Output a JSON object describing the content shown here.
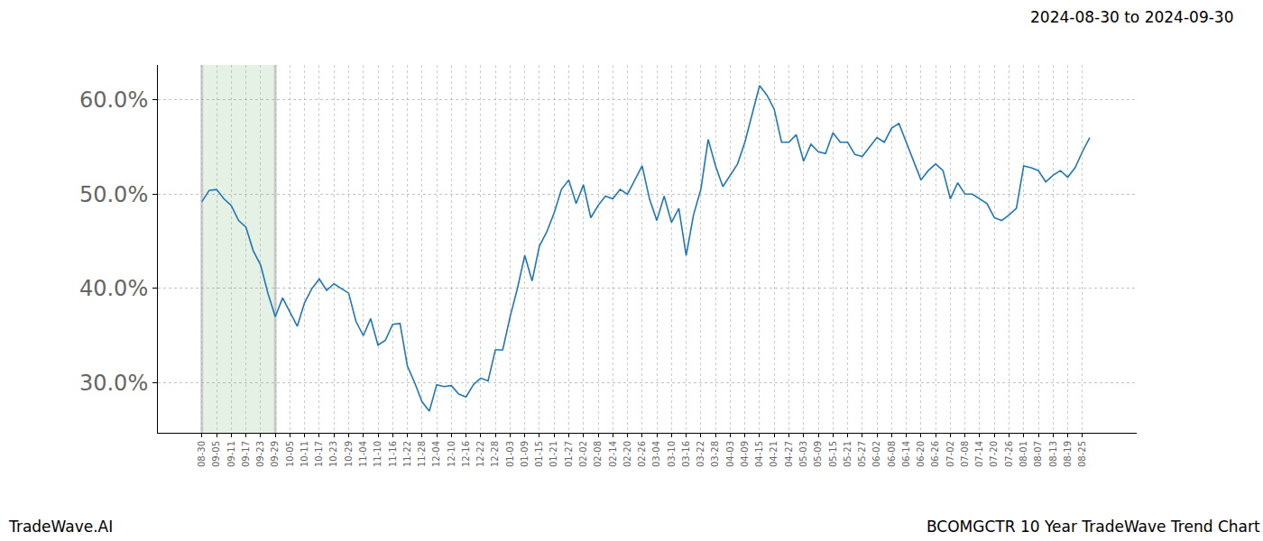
{
  "chart_data": {
    "type": "line",
    "title": "BCOMGCTR 10 Year TradeWave Trend Chart",
    "subtitle": "2024-08-30 to 2024-09-30",
    "annotations": [
      {
        "text": "TradeWave.AI"
      }
    ],
    "highlight": {
      "start": "08-30",
      "end": "09-29"
    },
    "color": "#1f77b4",
    "grid": true,
    "categories": [
      "08-30",
      null,
      "09-05",
      null,
      "09-11",
      null,
      "09-17",
      null,
      "09-23",
      null,
      "09-29",
      null,
      "10-05",
      null,
      "10-11",
      null,
      "10-17",
      null,
      "10-23",
      null,
      "10-29",
      null,
      "11-04",
      null,
      "11-10",
      null,
      "11-16",
      null,
      "11-22",
      null,
      "11-28",
      null,
      "12-04",
      null,
      "12-10",
      null,
      "12-16",
      null,
      "12-22",
      null,
      "12-28",
      null,
      "01-03",
      null,
      "01-09",
      null,
      "01-15",
      null,
      "01-21",
      null,
      "01-27",
      null,
      "02-02",
      null,
      "02-08",
      null,
      "02-14",
      null,
      "02-20",
      null,
      "02-26",
      null,
      "03-04",
      null,
      "03-10",
      null,
      "03-16",
      null,
      "03-22",
      null,
      "03-28",
      null,
      "04-03",
      null,
      "04-09",
      null,
      "04-15",
      null,
      "04-21",
      null,
      "04-27",
      null,
      "05-03",
      null,
      "05-09",
      null,
      "05-15",
      null,
      "05-21",
      null,
      "05-27",
      null,
      "06-02",
      null,
      "06-08",
      null,
      "06-14",
      null,
      "06-20",
      null,
      "06-26",
      null,
      "07-02",
      null,
      "07-08",
      null,
      "07-14",
      null,
      "07-20",
      null,
      "07-26",
      null,
      "08-01",
      null,
      "08-07",
      null,
      "08-13",
      null,
      "08-19",
      null,
      "08-25",
      null
    ],
    "values": [
      49.2,
      50.4,
      50.5,
      49.5,
      48.8,
      47.2,
      46.5,
      44.0,
      42.5,
      39.5,
      37.0,
      39.0,
      37.5,
      36.0,
      38.5,
      40.0,
      41.0,
      39.8,
      40.5,
      40.0,
      39.5,
      36.5,
      35.0,
      36.8,
      34.0,
      34.5,
      36.2,
      36.3,
      31.8,
      30.0,
      28.0,
      27.0,
      29.8,
      29.6,
      29.7,
      28.8,
      28.5,
      29.8,
      30.5,
      30.2,
      33.5,
      33.5,
      37.0,
      40.0,
      43.5,
      40.8,
      44.5,
      46.0,
      48.0,
      50.5,
      51.5,
      49.0,
      51.0,
      47.5,
      48.8,
      49.8,
      49.5,
      50.5,
      50.0,
      51.5,
      53.0,
      49.5,
      47.2,
      49.8,
      47.0,
      48.5,
      43.5,
      47.8,
      50.5,
      55.8,
      53.0,
      50.8,
      52.0,
      53.2,
      55.5,
      58.5,
      61.5,
      60.5,
      59.0,
      55.5,
      55.5,
      56.3,
      53.5,
      55.3,
      54.5,
      54.3,
      56.5,
      55.5,
      55.5,
      54.2,
      54.0,
      55.0,
      56.0,
      55.5,
      57.0,
      57.5,
      55.5,
      53.5,
      51.5,
      52.5,
      53.2,
      52.5,
      49.5,
      51.2,
      50.0,
      50.0,
      49.5,
      49.0,
      47.5,
      47.2,
      47.8,
      48.5,
      53.0,
      52.8,
      52.5,
      51.3,
      52.0,
      52.5,
      51.8,
      52.8,
      54.5,
      56.0
    ],
    "ylim": [
      24.7,
      63.7
    ],
    "yticks": [
      {
        "value": 30,
        "label": "30.0%"
      },
      {
        "value": 40,
        "label": "40.0%"
      },
      {
        "value": 50,
        "label": "50.0%"
      },
      {
        "value": 60,
        "label": "60.0%"
      }
    ]
  }
}
